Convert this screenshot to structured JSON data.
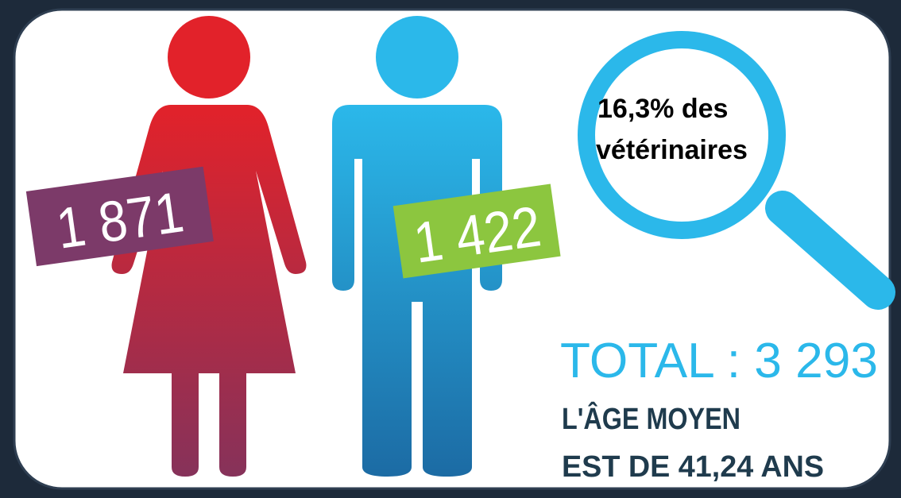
{
  "figures": [
    {
      "label": "1 871"
    },
    {
      "label": "1 422"
    }
  ],
  "magnifier": {
    "lines": [
      "16,3% des",
      "vétérinaires"
    ]
  },
  "total": "TOTAL : 3 293",
  "age": [
    "L'ÂGE MOYEN",
    "EST DE 41,24 ANS"
  ]
}
